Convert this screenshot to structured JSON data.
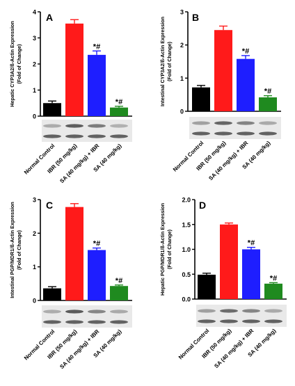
{
  "colors": {
    "black": "#000000",
    "red": "#ff1a1a",
    "blue": "#1e1eff",
    "green": "#1f8a1f",
    "axis": "#000000",
    "blot": "#4a4a4a"
  },
  "chart_data": [
    {
      "type": "bar",
      "panel_letter": "A",
      "ylabel_line1": "Hepatic CYP3A2/ß-Actin Expression",
      "ylabel_line2": "(Fold of Change)",
      "ylim": [
        0,
        4
      ],
      "ticks": [
        "0",
        "1",
        "2",
        "3",
        "4"
      ],
      "categories": [
        "Normal Control",
        "IBR (50 mg/kg)",
        "SA (40 mg/kg) + IBR",
        "SA (40 mg/kg)"
      ],
      "values": [
        0.5,
        3.55,
        2.35,
        0.33
      ],
      "errors": [
        0.08,
        0.15,
        0.15,
        0.05
      ],
      "annotations": [
        "",
        "",
        "*#",
        "*#"
      ]
    },
    {
      "type": "bar",
      "panel_letter": "B",
      "ylabel_line1": "Intestinal CYP3A2/ß-Actin Expression",
      "ylabel_line2": "(Fold of Change)",
      "ylim": [
        0,
        3
      ],
      "ticks": [
        "0",
        "1",
        "2",
        "3"
      ],
      "categories": [
        "Normal Control",
        "IBR (50 mg/kg)",
        "SA (40 mg/kg) + IBR",
        "SA (40 mg/kg)"
      ],
      "values": [
        0.72,
        2.45,
        1.58,
        0.42
      ],
      "errors": [
        0.06,
        0.12,
        0.1,
        0.05
      ],
      "annotations": [
        "",
        "",
        "*#",
        "*#"
      ]
    },
    {
      "type": "bar",
      "panel_letter": "C",
      "ylabel_line1": "Intestinal PGP/MDR1/ß-Actin Expression",
      "ylabel_line2": "(Fold of Change)",
      "ylim": [
        0,
        3
      ],
      "ticks": [
        "0",
        "1",
        "2",
        "3"
      ],
      "categories": [
        "Normal Control",
        "IBR (50 mg/kg)",
        "SA (40 mg/kg) + IBR",
        "SA (40 mg/kg)"
      ],
      "values": [
        0.36,
        2.78,
        1.5,
        0.43
      ],
      "errors": [
        0.05,
        0.1,
        0.06,
        0.03
      ],
      "annotations": [
        "",
        "",
        "*#",
        "*#"
      ]
    },
    {
      "type": "bar",
      "panel_letter": "D",
      "ylabel_line1": "Hepatic PGP/MDR1/ß-Actin Expression",
      "ylabel_line2": "(Fold of Change)",
      "ylim": [
        0,
        2
      ],
      "ticks": [
        "0.0",
        "0.5",
        "1.0",
        "1.5",
        "2.0"
      ],
      "categories": [
        "Normal Control",
        "IBR (50 mg/kg)",
        "SA (40 mg/kg) + IBR",
        "SA (40 mg/kg)"
      ],
      "values": [
        0.49,
        1.5,
        1.0,
        0.31
      ],
      "errors": [
        0.03,
        0.03,
        0.04,
        0.02
      ],
      "annotations": [
        "",
        "",
        "*#",
        "*#"
      ]
    }
  ]
}
